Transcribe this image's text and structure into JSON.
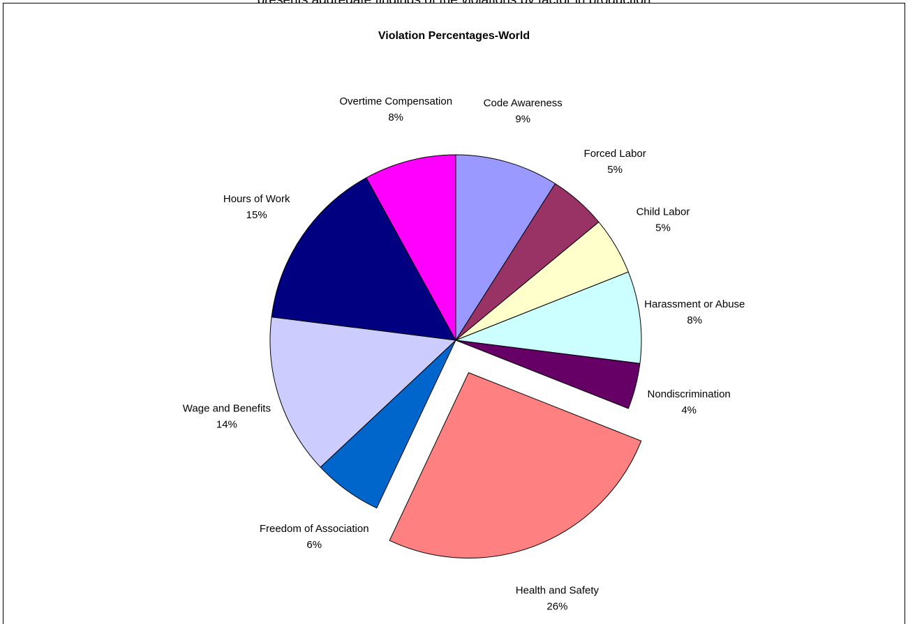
{
  "caption": "presents aggregate findings of the violations by factor in production",
  "chart_data": {
    "type": "pie",
    "title": "Violation Percentages-World",
    "start_angle_deg": 0,
    "direction": "clockwise",
    "legend": "none",
    "slices": [
      {
        "label": "Code Awareness",
        "value": 9,
        "display": "9%",
        "color": "#9999FF",
        "exploded": false
      },
      {
        "label": "Forced Labor",
        "value": 5,
        "display": "5%",
        "color": "#993366",
        "exploded": false
      },
      {
        "label": "Child Labor",
        "value": 5,
        "display": "5%",
        "color": "#FFFFCC",
        "exploded": false
      },
      {
        "label": "Harassment or Abuse",
        "value": 8,
        "display": "8%",
        "color": "#CCFFFF",
        "exploded": false
      },
      {
        "label": "Nondiscrimination",
        "value": 4,
        "display": "4%",
        "color": "#660066",
        "exploded": false
      },
      {
        "label": "Health and Safety",
        "value": 26,
        "display": "26%",
        "color": "#FF8080",
        "exploded": true
      },
      {
        "label": "Freedom of Association",
        "value": 6,
        "display": "6%",
        "color": "#0066CC",
        "exploded": false
      },
      {
        "label": "Wage and Benefits",
        "value": 14,
        "display": "14%",
        "color": "#CCCCFF",
        "exploded": false
      },
      {
        "label": "Hours of Work",
        "value": 15,
        "display": "15%",
        "color": "#000080",
        "exploded": false
      },
      {
        "label": "Overtime Compensation",
        "value": 8,
        "display": "8%",
        "color": "#FF00FF",
        "exploded": false
      }
    ]
  }
}
